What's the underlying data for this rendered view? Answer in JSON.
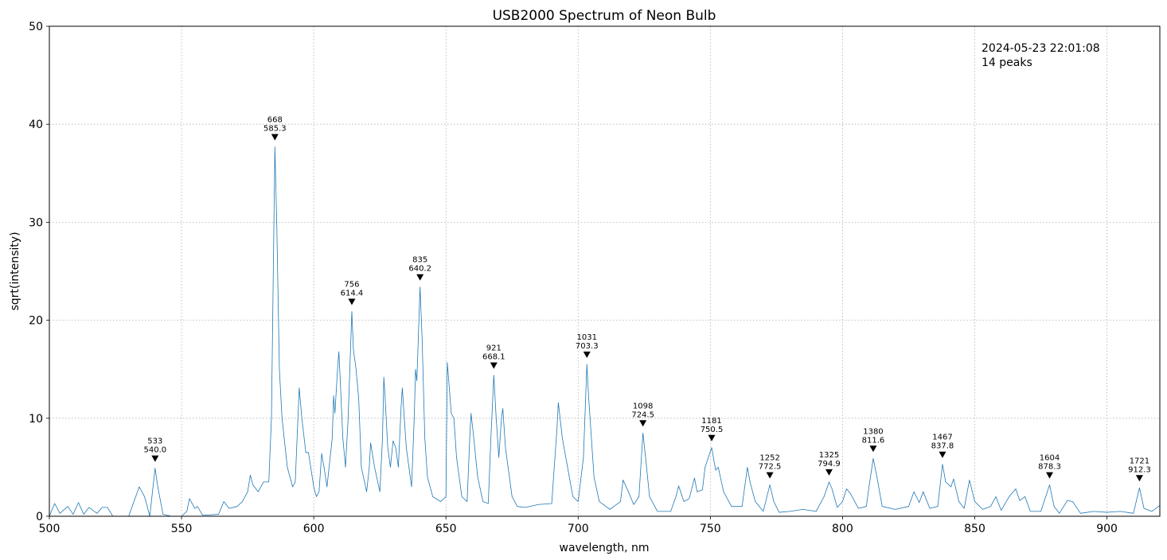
{
  "chart_data": {
    "type": "line",
    "title": "USB2000 Spectrum of Neon Bulb",
    "xlabel": "wavelength, nm",
    "ylabel": "sqrt(intensity)",
    "annotations": [
      "2024-05-23 22:01:08",
      "14 peaks"
    ],
    "xlim": [
      500,
      920
    ],
    "xticks": [
      500,
      550,
      600,
      650,
      700,
      750,
      800,
      850,
      900
    ],
    "ylim": [
      0,
      50
    ],
    "yticks": [
      0,
      10,
      20,
      30,
      40,
      50
    ],
    "grid": true,
    "series": [
      {
        "color": "#1f77b4",
        "x": [
          500,
          502,
          504,
          507,
          509,
          511,
          513,
          515,
          518,
          520,
          522,
          524,
          530,
          532,
          534,
          536,
          538,
          539,
          540,
          541,
          543,
          546,
          550,
          552,
          553,
          555,
          556,
          558,
          564,
          566,
          568,
          571,
          573,
          575,
          576,
          577,
          579,
          581,
          583,
          584,
          585.3,
          586,
          587,
          588,
          590,
          592,
          593,
          594.5,
          595.5,
          597,
          598,
          600,
          601,
          602,
          603,
          604,
          605,
          607,
          607.5,
          608,
          609,
          609.5,
          610,
          611,
          612,
          613,
          614.4,
          615,
          616,
          617,
          618,
          620,
          621,
          621.5,
          623,
          625,
          626,
          626.5,
          627,
          628,
          629,
          630,
          631,
          632,
          633,
          633.5,
          634,
          635,
          636,
          637,
          638,
          638.5,
          639,
          640.2,
          641,
          642,
          643,
          645,
          648,
          650,
          650.5,
          651,
          652,
          653,
          654,
          656,
          658,
          659,
          659.5,
          660.5,
          662,
          664,
          666,
          667,
          668.1,
          669,
          670,
          671,
          671.5,
          672.5,
          675,
          677,
          680,
          685,
          690,
          692,
          692.5,
          694,
          696,
          698,
          700,
          702,
          703.3,
          704,
          706,
          708,
          712,
          716,
          717,
          719,
          721,
          723,
          724.5,
          725.5,
          727,
          730,
          735,
          737,
          738,
          740,
          742,
          744,
          745,
          747,
          748,
          750.5,
          752,
          753,
          755,
          758,
          762,
          763,
          764,
          765,
          767,
          770,
          772.5,
          774,
          776,
          780,
          785,
          790,
          793,
          794.9,
          796,
          798,
          800,
          801.5,
          803,
          806,
          809,
          810,
          811.6,
          813,
          815,
          820,
          825,
          827,
          829,
          830.5,
          833,
          836,
          837.8,
          839,
          841,
          842,
          844,
          846,
          848,
          850,
          853,
          856,
          858,
          860,
          863,
          865.5,
          867,
          869,
          871,
          875,
          878.3,
          880,
          882,
          885,
          887,
          890,
          895,
          900,
          905,
          910,
          912.3,
          914,
          917,
          920
        ],
        "values": [
          0,
          1.3,
          0.3,
          1.0,
          0.2,
          1.4,
          0.2,
          0.9,
          0.3,
          0.9,
          0.9,
          0,
          0,
          1.5,
          3.0,
          2.0,
          0,
          2.5,
          4.9,
          3,
          0.2,
          0,
          0,
          0.5,
          1.8,
          0.8,
          1.0,
          0.1,
          0.2,
          1.5,
          0.8,
          1.0,
          1.5,
          2.5,
          4.2,
          3.2,
          2.5,
          3.5,
          3.5,
          10,
          37.7,
          30,
          15,
          10,
          5,
          3,
          3.5,
          13.1,
          10,
          6.5,
          6.5,
          3,
          2,
          2.5,
          6.4,
          4.8,
          3,
          8,
          12.3,
          10.5,
          15,
          16.8,
          14,
          8,
          5,
          10,
          20.9,
          17,
          15,
          12,
          5,
          2.5,
          5,
          7.5,
          5,
          2.5,
          8,
          14.2,
          12,
          7,
          5,
          7.7,
          7,
          5,
          11,
          13.1,
          11,
          7,
          5,
          3,
          10,
          15,
          13.8,
          23.4,
          18,
          8,
          4,
          2,
          1.5,
          2,
          15.7,
          14,
          10.5,
          10,
          6,
          2,
          1.5,
          8,
          10.5,
          8,
          4,
          1.5,
          1.3,
          8,
          14.4,
          10,
          6,
          10,
          11,
          7,
          2,
          1,
          0.9,
          1.2,
          1.3,
          9,
          11.6,
          8,
          5,
          2,
          1.5,
          6,
          15.5,
          12,
          4,
          1.5,
          0.7,
          1.5,
          3.7,
          2.5,
          1.2,
          2,
          8.5,
          6,
          2,
          0.5,
          0.5,
          2,
          3.1,
          1.5,
          1.8,
          3.9,
          2.5,
          2.7,
          5,
          7.0,
          4.7,
          5,
          2.5,
          1,
          1,
          3,
          5.0,
          3.5,
          1.5,
          0.5,
          3.2,
          1.5,
          0.4,
          0.5,
          0.7,
          0.5,
          2,
          3.5,
          2.8,
          0.9,
          1.5,
          2.8,
          2.3,
          0.8,
          1,
          3,
          5.9,
          4,
          1,
          0.7,
          1,
          2.5,
          1.4,
          2.5,
          0.8,
          1,
          5.3,
          3.5,
          3,
          3.8,
          1.5,
          0.8,
          3.7,
          1.5,
          0.7,
          1,
          2,
          0.6,
          2,
          2.8,
          1.6,
          2,
          0.5,
          0.5,
          3.2,
          1,
          0.3,
          1.6,
          1.5,
          0.3,
          0.5,
          0.4,
          0.5,
          0.3,
          2.9,
          0.8,
          0.5,
          1.1
        ]
      }
    ],
    "peaks": {
      "index": [
        533,
        668,
        756,
        835,
        921,
        1031,
        1098,
        1181,
        1252,
        1325,
        1380,
        1467,
        1604,
        1721
      ],
      "x": [
        540.0,
        585.3,
        614.4,
        640.2,
        668.1,
        703.3,
        724.5,
        750.5,
        772.5,
        794.9,
        811.6,
        837.8,
        878.3,
        912.3
      ],
      "x_labels": [
        "540.0",
        "585.3",
        "614.4",
        "640.2",
        "668.1",
        "703.3",
        "724.5",
        "750.5",
        "772.5",
        "794.9",
        "811.6",
        "837.8",
        "878.3",
        "912.3"
      ],
      "y": [
        4.9,
        37.7,
        20.9,
        23.4,
        14.4,
        15.5,
        8.5,
        7.0,
        3.2,
        3.5,
        5.9,
        5.3,
        3.2,
        2.9
      ]
    }
  }
}
